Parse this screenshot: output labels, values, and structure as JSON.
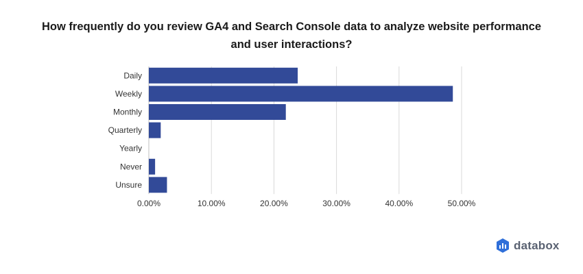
{
  "title_lines": [
    "How frequently do you review GA4 and Search Console data to analyze website performance",
    "and user interactions?"
  ],
  "brand": {
    "name": "databox",
    "icon": "databox-logo-icon"
  },
  "colors": {
    "bar": "#324a98",
    "grid": "#d9d9d9",
    "brand_icon": "#2f6fd9"
  },
  "chart_data": {
    "type": "bar",
    "orientation": "horizontal",
    "title": "How frequently do you review GA4 and Search Console data to analyze website performance and user interactions?",
    "categories": [
      "Daily",
      "Weekly",
      "Monthly",
      "Quarterly",
      "Yearly",
      "Never",
      "Unsure"
    ],
    "values": [
      23.8,
      48.6,
      21.9,
      1.9,
      0.0,
      1.0,
      2.9
    ],
    "unit": "%",
    "xlim": [
      0,
      50
    ],
    "x_ticks": [
      0,
      10,
      20,
      30,
      40,
      50
    ],
    "x_tick_labels": [
      "0.00%",
      "10.00%",
      "20.00%",
      "30.00%",
      "40.00%",
      "50.00%"
    ],
    "grid": "vertical",
    "xlabel": "",
    "ylabel": ""
  }
}
